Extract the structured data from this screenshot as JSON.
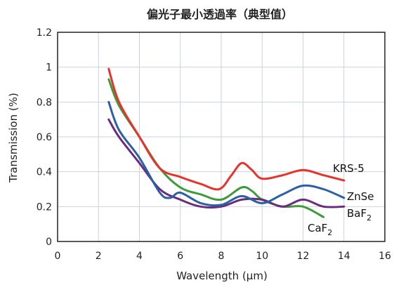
{
  "chart_data": {
    "type": "line",
    "title": "偏光子最小透過率（典型值）",
    "xlabel": "Wavelength (μm)",
    "ylabel": "Transmission (%)",
    "xlim": [
      0,
      16
    ],
    "ylim": [
      0,
      1.2
    ],
    "xticks": [
      "0",
      "2",
      "4",
      "6",
      "8",
      "10",
      "12",
      "14",
      "16"
    ],
    "yticks": [
      "0",
      "0.2",
      "0.4",
      "0.6",
      "0.8",
      "1",
      "1.2"
    ],
    "grid": true,
    "series": [
      {
        "name": "KRS-5",
        "label_main": "KRS-5",
        "label_sub": "",
        "color": "#e8322b",
        "x": [
          2.5,
          3,
          4,
          5,
          6,
          7,
          7.9,
          8.5,
          9,
          9.5,
          10,
          11,
          12,
          13,
          14
        ],
        "y": [
          0.99,
          0.8,
          0.6,
          0.42,
          0.37,
          0.33,
          0.3,
          0.38,
          0.45,
          0.41,
          0.36,
          0.38,
          0.41,
          0.38,
          0.35
        ]
      },
      {
        "name": "ZnSe",
        "label_main": "ZnSe",
        "label_sub": "",
        "color": "#2b5fa6",
        "x": [
          2.5,
          3,
          4,
          5,
          5.5,
          6,
          7,
          8,
          9,
          10,
          11,
          12,
          13,
          14
        ],
        "y": [
          0.8,
          0.64,
          0.48,
          0.28,
          0.25,
          0.28,
          0.22,
          0.21,
          0.26,
          0.22,
          0.27,
          0.32,
          0.3,
          0.25
        ]
      },
      {
        "name": "BaF2",
        "label_main": "BaF",
        "label_sub": "2",
        "color": "#6b2c7e",
        "x": [
          2.5,
          3,
          4,
          5,
          6,
          7,
          8,
          9,
          10,
          11,
          12,
          13,
          14
        ],
        "y": [
          0.7,
          0.6,
          0.45,
          0.3,
          0.24,
          0.2,
          0.2,
          0.24,
          0.24,
          0.2,
          0.24,
          0.2,
          0.2
        ]
      },
      {
        "name": "CaF2",
        "label_main": "CaF",
        "label_sub": "2",
        "color": "#3f9a3a",
        "x": [
          2.5,
          3,
          4,
          5,
          6,
          7,
          8,
          9,
          9.5,
          10,
          11,
          12,
          13
        ],
        "y": [
          0.93,
          0.78,
          0.6,
          0.42,
          0.31,
          0.27,
          0.24,
          0.31,
          0.29,
          0.24,
          0.2,
          0.2,
          0.14
        ]
      }
    ]
  }
}
